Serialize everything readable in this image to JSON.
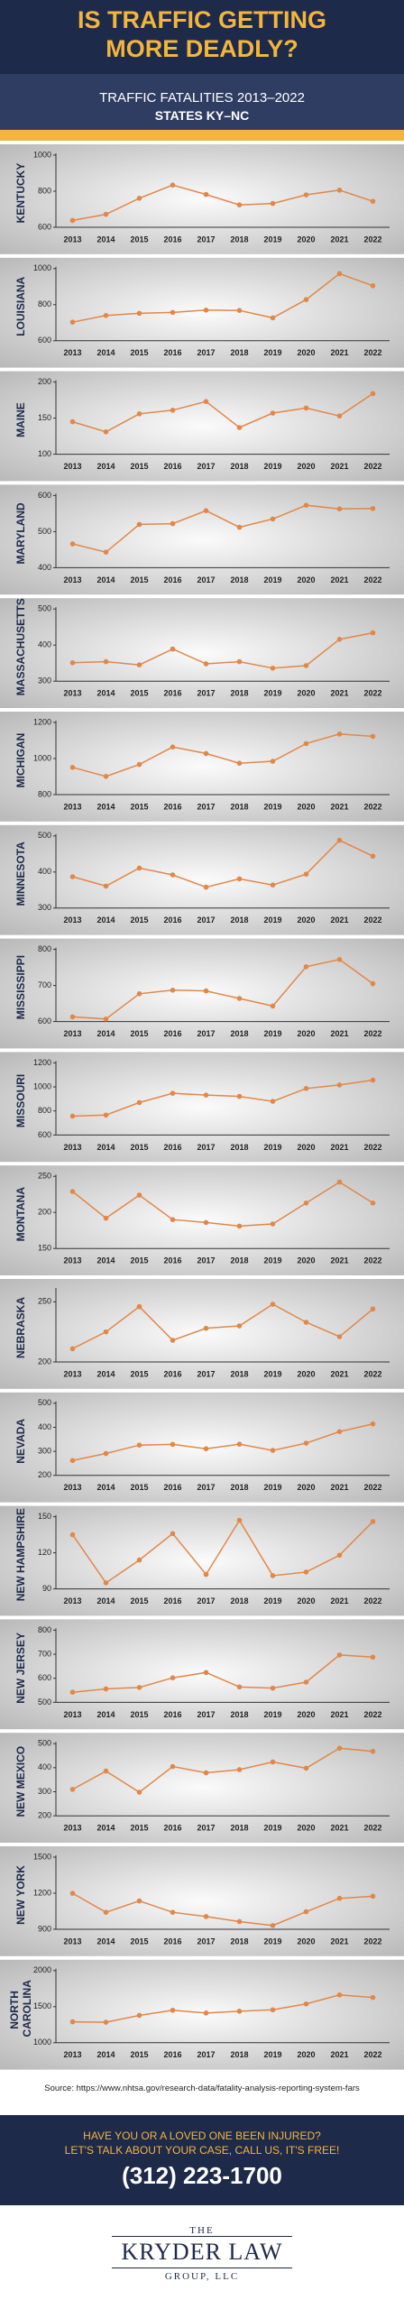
{
  "header": {
    "title": "IS TRAFFIC GETTING MORE DEADLY?",
    "subtitle": "TRAFFIC FATALITIES 2013–2022",
    "subtitle2": "STATES KY–NC"
  },
  "chart_data": [
    {
      "type": "line",
      "title": "KENTUCKY",
      "categories": [
        "2013",
        "2014",
        "2015",
        "2016",
        "2017",
        "2018",
        "2019",
        "2020",
        "2021",
        "2022"
      ],
      "values": [
        638,
        672,
        761,
        834,
        782,
        724,
        732,
        780,
        806,
        744
      ],
      "color": "#e0884a",
      "ylim": [
        600,
        1000
      ],
      "yticks": [
        600,
        800,
        1000
      ]
    },
    {
      "type": "line",
      "title": "LOUISIANA",
      "categories": [
        "2013",
        "2014",
        "2015",
        "2016",
        "2017",
        "2018",
        "2019",
        "2020",
        "2021",
        "2022"
      ],
      "values": [
        703,
        740,
        752,
        757,
        770,
        768,
        727,
        828,
        972,
        905
      ],
      "color": "#e0884a",
      "ylim": [
        600,
        1000
      ],
      "yticks": [
        600,
        800,
        1000
      ]
    },
    {
      "type": "line",
      "title": "MAINE",
      "categories": [
        "2013",
        "2014",
        "2015",
        "2016",
        "2017",
        "2018",
        "2019",
        "2020",
        "2021",
        "2022"
      ],
      "values": [
        145,
        131,
        156,
        161,
        173,
        137,
        157,
        164,
        153,
        184
      ],
      "color": "#e0884a",
      "ylim": [
        100,
        200
      ],
      "yticks": [
        100,
        150,
        200
      ]
    },
    {
      "type": "line",
      "title": "MARYLAND",
      "categories": [
        "2013",
        "2014",
        "2015",
        "2016",
        "2017",
        "2018",
        "2019",
        "2020",
        "2021",
        "2022"
      ],
      "values": [
        466,
        443,
        520,
        522,
        558,
        512,
        535,
        573,
        563,
        564
      ],
      "color": "#e0884a",
      "ylim": [
        400,
        600
      ],
      "yticks": [
        400,
        500,
        600
      ]
    },
    {
      "type": "line",
      "title": "MASSACHUSETTS",
      "categories": [
        "2013",
        "2014",
        "2015",
        "2016",
        "2017",
        "2018",
        "2019",
        "2020",
        "2021",
        "2022"
      ],
      "values": [
        351,
        354,
        345,
        389,
        348,
        354,
        336,
        343,
        416,
        434
      ],
      "color": "#e0884a",
      "ylim": [
        300,
        500
      ],
      "yticks": [
        300,
        400,
        500
      ]
    },
    {
      "type": "line",
      "title": "MICHIGAN",
      "categories": [
        "2013",
        "2014",
        "2015",
        "2016",
        "2017",
        "2018",
        "2019",
        "2020",
        "2021",
        "2022"
      ],
      "values": [
        951,
        901,
        967,
        1064,
        1028,
        974,
        985,
        1083,
        1136,
        1123
      ],
      "color": "#e0884a",
      "ylim": [
        800,
        1200
      ],
      "yticks": [
        800,
        1000,
        1200
      ]
    },
    {
      "type": "line",
      "title": "MINNESOTA",
      "categories": [
        "2013",
        "2014",
        "2015",
        "2016",
        "2017",
        "2018",
        "2019",
        "2020",
        "2021",
        "2022"
      ],
      "values": [
        387,
        361,
        411,
        392,
        358,
        381,
        364,
        394,
        488,
        444
      ],
      "color": "#e0884a",
      "ylim": [
        300,
        500
      ],
      "yticks": [
        300,
        400,
        500
      ]
    },
    {
      "type": "line",
      "title": "MISSISSIPPI",
      "categories": [
        "2013",
        "2014",
        "2015",
        "2016",
        "2017",
        "2018",
        "2019",
        "2020",
        "2021",
        "2022"
      ],
      "values": [
        613,
        607,
        677,
        687,
        685,
        664,
        643,
        752,
        772,
        705
      ],
      "color": "#e0884a",
      "ylim": [
        600,
        800
      ],
      "yticks": [
        600,
        700,
        800
      ]
    },
    {
      "type": "line",
      "title": "MISSOURI",
      "categories": [
        "2013",
        "2014",
        "2015",
        "2016",
        "2017",
        "2018",
        "2019",
        "2020",
        "2021",
        "2022"
      ],
      "values": [
        757,
        766,
        870,
        947,
        932,
        921,
        880,
        987,
        1016,
        1057
      ],
      "color": "#e0884a",
      "ylim": [
        600,
        1200
      ],
      "yticks": [
        600,
        800,
        1000,
        1200
      ]
    },
    {
      "type": "line",
      "title": "MONTANA",
      "categories": [
        "2013",
        "2014",
        "2015",
        "2016",
        "2017",
        "2018",
        "2019",
        "2020",
        "2021",
        "2022"
      ],
      "values": [
        229,
        192,
        224,
        190,
        186,
        181,
        184,
        213,
        242,
        213
      ],
      "color": "#e0884a",
      "ylim": [
        150,
        250
      ],
      "yticks": [
        150,
        200,
        250
      ]
    },
    {
      "type": "line",
      "title": "NEBRASKA",
      "categories": [
        "2013",
        "2014",
        "2015",
        "2016",
        "2017",
        "2018",
        "2019",
        "2020",
        "2021",
        "2022"
      ],
      "values": [
        211,
        225,
        246,
        218,
        228,
        230,
        248,
        233,
        221,
        244
      ],
      "color": "#e0884a",
      "ylim": [
        200,
        260
      ],
      "yticks": [
        200,
        250
      ]
    },
    {
      "type": "line",
      "title": "NEVADA",
      "categories": [
        "2013",
        "2014",
        "2015",
        "2016",
        "2017",
        "2018",
        "2019",
        "2020",
        "2021",
        "2022"
      ],
      "values": [
        262,
        291,
        326,
        329,
        311,
        330,
        304,
        334,
        382,
        414
      ],
      "color": "#e0884a",
      "ylim": [
        200,
        500
      ],
      "yticks": [
        200,
        300,
        400,
        500
      ]
    },
    {
      "type": "line",
      "title": "NEW HAMPSHIRE",
      "categories": [
        "2013",
        "2014",
        "2015",
        "2016",
        "2017",
        "2018",
        "2019",
        "2020",
        "2021",
        "2022"
      ],
      "values": [
        135,
        95,
        114,
        136,
        102,
        147,
        101,
        104,
        118,
        146
      ],
      "color": "#e0884a",
      "ylim": [
        90,
        150
      ],
      "yticks": [
        90,
        120,
        150
      ]
    },
    {
      "type": "line",
      "title": "NEW JERSEY",
      "categories": [
        "2013",
        "2014",
        "2015",
        "2016",
        "2017",
        "2018",
        "2019",
        "2020",
        "2021",
        "2022"
      ],
      "values": [
        542,
        556,
        562,
        602,
        624,
        564,
        559,
        584,
        697,
        688
      ],
      "color": "#e0884a",
      "ylim": [
        500,
        800
      ],
      "yticks": [
        500,
        600,
        700,
        800
      ]
    },
    {
      "type": "line",
      "title": "NEW MEXICO",
      "categories": [
        "2013",
        "2014",
        "2015",
        "2016",
        "2017",
        "2018",
        "2019",
        "2020",
        "2021",
        "2022"
      ],
      "values": [
        310,
        386,
        298,
        405,
        379,
        392,
        424,
        398,
        481,
        468
      ],
      "color": "#e0884a",
      "ylim": [
        200,
        500
      ],
      "yticks": [
        200,
        300,
        400,
        500
      ]
    },
    {
      "type": "line",
      "title": "NEW YORK",
      "categories": [
        "2013",
        "2014",
        "2015",
        "2016",
        "2017",
        "2018",
        "2019",
        "2020",
        "2021",
        "2022"
      ],
      "values": [
        1199,
        1041,
        1136,
        1041,
        1006,
        964,
        931,
        1046,
        1157,
        1175
      ],
      "color": "#e0884a",
      "ylim": [
        900,
        1500
      ],
      "yticks": [
        900,
        1200,
        1500
      ]
    },
    {
      "type": "line",
      "title": "NORTH CAROLINA",
      "categories": [
        "2013",
        "2014",
        "2015",
        "2016",
        "2017",
        "2018",
        "2019",
        "2020",
        "2021",
        "2022"
      ],
      "values": [
        1290,
        1284,
        1379,
        1450,
        1412,
        1437,
        1457,
        1538,
        1663,
        1627
      ],
      "color": "#e0884a",
      "ylim": [
        1000,
        2000
      ],
      "yticks": [
        1000,
        1500,
        2000
      ]
    }
  ],
  "source": "Source: https://www.nhtsa.gov/research-data/fatality-analysis-reporting-system-fars",
  "footer": {
    "line1": "HAVE YOU OR A LOVED ONE BEEN INJURED?",
    "line2": "LET'S TALK ABOUT YOUR CASE, CALL US, IT'S FREE!",
    "phone": "(312) 223-1700"
  },
  "logo": {
    "top": "THE",
    "name": "KRYDER LAW",
    "bottom": "GROUP, LLC"
  }
}
